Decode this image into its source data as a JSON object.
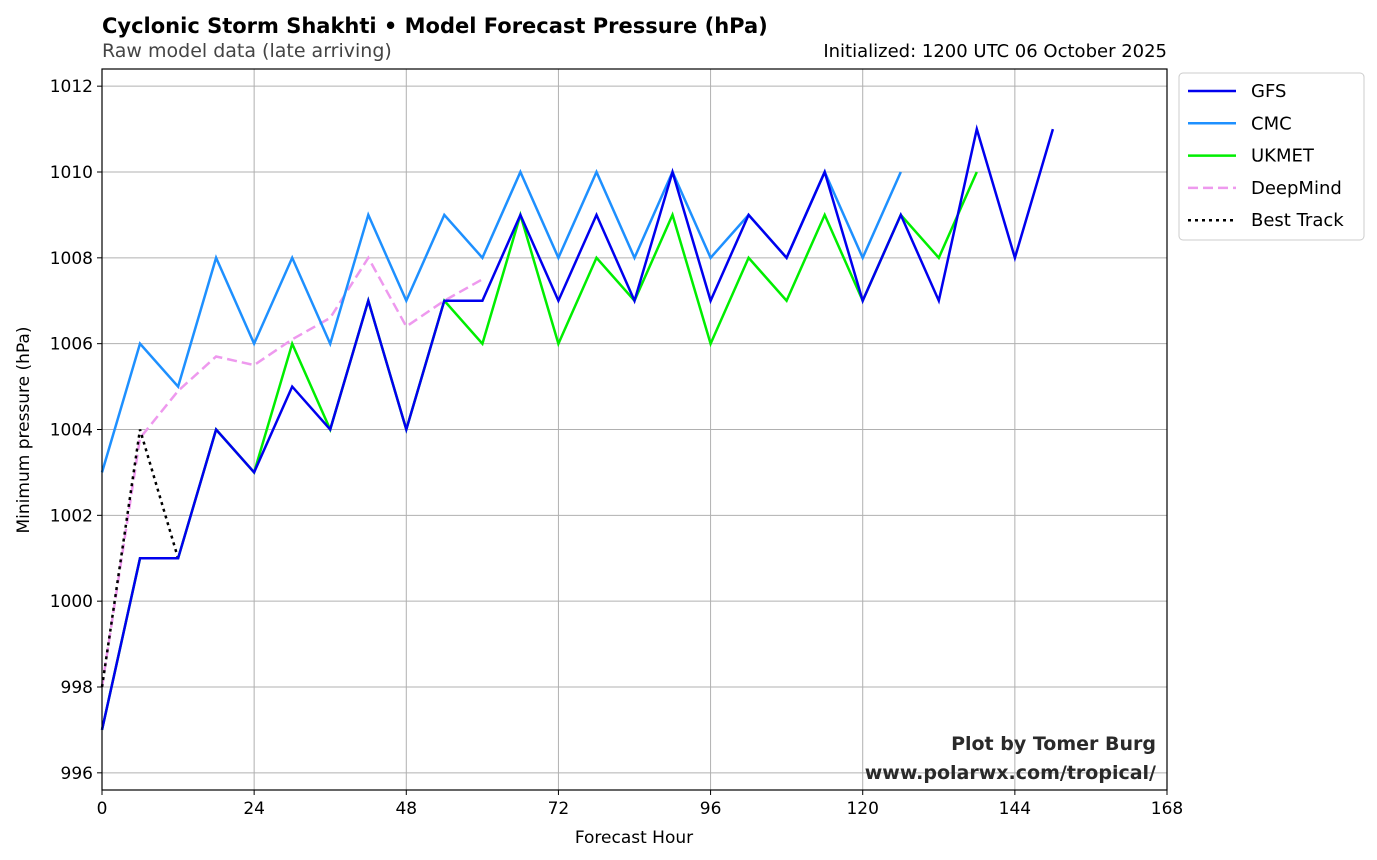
{
  "chart_data": {
    "type": "line",
    "title": "Cyclonic Storm Shakhti • Model Forecast Pressure (hPa)",
    "subtitle": "Raw model data (late arriving)",
    "init_label": "Initialized: 1200 UTC 06 October 2025",
    "xlabel": "Forecast Hour",
    "ylabel": "Minimum pressure (hPa)",
    "xlim": [
      0,
      168
    ],
    "ylim": [
      995.6,
      1012.4
    ],
    "xticks": [
      0,
      24,
      48,
      72,
      96,
      120,
      144,
      168
    ],
    "yticks": [
      996,
      998,
      1000,
      1002,
      1004,
      1006,
      1008,
      1010,
      1012
    ],
    "grid": true,
    "legend_position": "outside-top-right",
    "credit": [
      "Plot by Tomer Burg",
      "www.polarwx.com/tropical/"
    ],
    "series": [
      {
        "name": "GFS",
        "color": "#0000ee",
        "style": "solid",
        "x": [
          0,
          6,
          12,
          18,
          24,
          30,
          36,
          42,
          48,
          54,
          60,
          66,
          72,
          78,
          84,
          90,
          96,
          102,
          108,
          114,
          120,
          126,
          132,
          138,
          144,
          150
        ],
        "values": [
          997,
          1001,
          1001,
          1004,
          1003,
          1005,
          1004,
          1007,
          1004,
          1007,
          1007,
          1009,
          1007,
          1009,
          1007,
          1010,
          1007,
          1009,
          1008,
          1010,
          1007,
          1009,
          1007,
          1011,
          1008,
          1011
        ]
      },
      {
        "name": "CMC",
        "color": "#1e90ff",
        "style": "solid",
        "x": [
          0,
          6,
          12,
          18,
          24,
          30,
          36,
          42,
          48,
          54,
          60,
          66,
          72,
          78,
          84,
          90,
          96,
          102,
          108,
          114,
          120,
          126
        ],
        "values": [
          1003,
          1006,
          1005,
          1008,
          1006,
          1008,
          1006,
          1009,
          1007,
          1009,
          1008,
          1010,
          1008,
          1010,
          1008,
          1010,
          1008,
          1009,
          1008,
          1010,
          1008,
          1010
        ]
      },
      {
        "name": "UKMET",
        "color": "#00ee00",
        "style": "solid",
        "x": [
          0,
          6,
          12,
          18,
          24,
          30,
          36,
          42,
          48,
          54,
          60,
          66,
          72,
          78,
          84,
          90,
          96,
          102,
          108,
          114,
          120,
          126,
          132,
          138
        ],
        "values": [
          997,
          1001,
          1001,
          1004,
          1003,
          1006,
          1004,
          1007,
          1004,
          1007,
          1006,
          1009,
          1006,
          1008,
          1007,
          1009,
          1006,
          1008,
          1007,
          1009,
          1007,
          1009,
          1008,
          1010
        ]
      },
      {
        "name": "DeepMind",
        "color": "#ee99ee",
        "style": "dashed",
        "x": [
          0,
          6,
          12,
          18,
          24,
          30,
          36,
          42,
          48,
          54,
          60
        ],
        "values": [
          998,
          1003.8,
          1004.9,
          1005.7,
          1005.5,
          1006.1,
          1006.6,
          1008.0,
          1006.4,
          1007.0,
          1007.5
        ]
      },
      {
        "name": "Best Track",
        "color": "#000000",
        "style": "dotted",
        "x": [
          0,
          6,
          12
        ],
        "values": [
          998,
          1004,
          1001
        ]
      }
    ]
  }
}
